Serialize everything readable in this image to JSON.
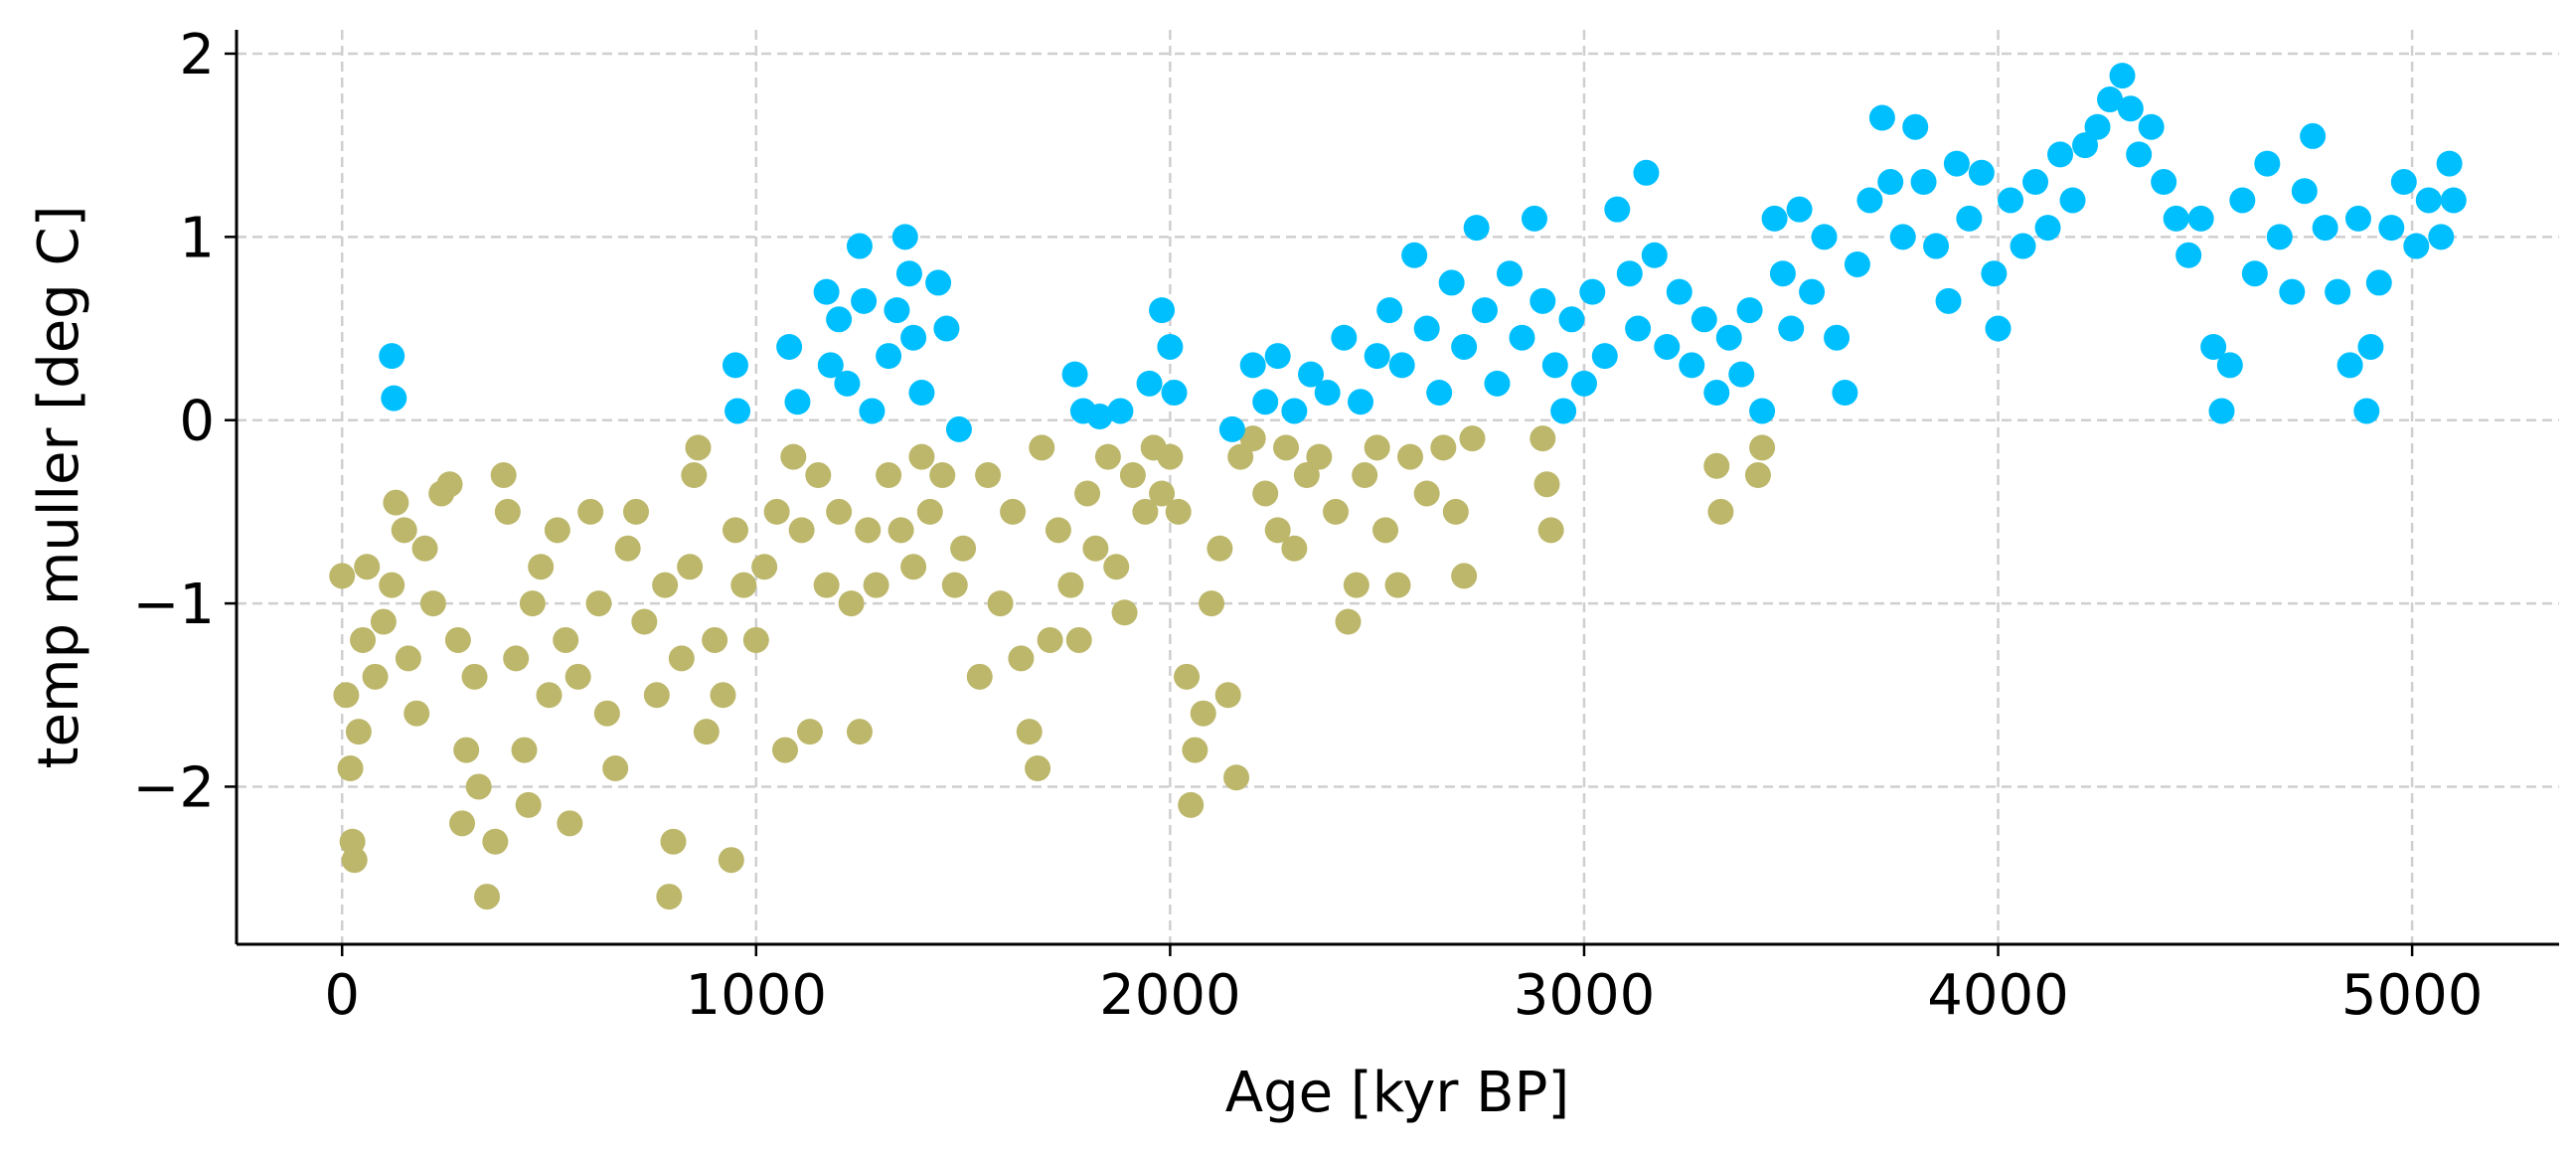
{
  "chart_data": {
    "type": "scatter",
    "xlabel": "Age [kyr BP]",
    "ylabel": "temp muller [deg C]",
    "xlim": [
      -255,
      5355
    ],
    "ylim": [
      -2.86,
      2.13
    ],
    "xticks": [
      0,
      1000,
      2000,
      3000,
      4000,
      5000
    ],
    "yticks": [
      {
        "value": -2,
        "label": "−2"
      },
      {
        "value": -1,
        "label": "−1"
      },
      0,
      1,
      2
    ],
    "grid": true,
    "series": [
      {
        "color": "#bdb76b",
        "x": [
          0,
          10,
          20,
          25,
          30,
          40,
          50,
          60,
          80,
          100,
          120,
          130,
          150,
          160,
          180,
          200,
          220,
          240,
          260,
          280,
          290,
          300,
          320,
          330,
          350,
          370,
          390,
          400,
          420,
          440,
          450,
          460,
          480,
          500,
          520,
          540,
          550,
          570,
          600,
          620,
          640,
          660,
          690,
          710,
          730,
          760,
          780,
          790,
          800,
          820,
          840,
          850,
          860,
          880,
          900,
          920,
          940,
          950,
          970,
          1000,
          1020,
          1050,
          1070,
          1090,
          1110,
          1130,
          1150,
          1170,
          1200,
          1230,
          1250,
          1270,
          1290,
          1320,
          1350,
          1380,
          1400,
          1420,
          1450,
          1480,
          1500,
          1540,
          1560,
          1590,
          1620,
          1640,
          1660,
          1680,
          1690,
          1710,
          1730,
          1760,
          1780,
          1800,
          1820,
          1850,
          1870,
          1890,
          1910,
          1940,
          1960,
          1980,
          2000,
          2020,
          2040,
          2050,
          2060,
          2080,
          2100,
          2120,
          2140,
          2160,
          2170,
          2200,
          2230,
          2260,
          2280,
          2300,
          2330,
          2360,
          2400,
          2430,
          2450,
          2470,
          2500,
          2520,
          2550,
          2580,
          2620,
          2660,
          2690,
          2710,
          2730,
          2900,
          2910,
          2920,
          3320,
          3330,
          3420,
          3430
        ],
        "values": [
          -0.85,
          -1.5,
          -1.9,
          -2.3,
          -2.4,
          -1.7,
          -1.2,
          -0.8,
          -1.4,
          -1.1,
          -0.9,
          -0.45,
          -0.6,
          -1.3,
          -1.6,
          -0.7,
          -1.0,
          -0.4,
          -0.35,
          -1.2,
          -2.2,
          -1.8,
          -1.4,
          -2.0,
          -2.6,
          -2.3,
          -0.3,
          -0.5,
          -1.3,
          -1.8,
          -2.1,
          -1.0,
          -0.8,
          -1.5,
          -0.6,
          -1.2,
          -2.2,
          -1.4,
          -0.5,
          -1.0,
          -1.6,
          -1.9,
          -0.7,
          -0.5,
          -1.1,
          -1.5,
          -0.9,
          -2.6,
          -2.3,
          -1.3,
          -0.8,
          -0.3,
          -0.15,
          -1.7,
          -1.2,
          -1.5,
          -2.4,
          -0.6,
          -0.9,
          -1.2,
          -0.8,
          -0.5,
          -1.8,
          -0.2,
          -0.6,
          -1.7,
          -0.3,
          -0.9,
          -0.5,
          -1.0,
          -1.7,
          -0.6,
          -0.9,
          -0.3,
          -0.6,
          -0.8,
          -0.2,
          -0.5,
          -0.3,
          -0.9,
          -0.7,
          -1.4,
          -0.3,
          -1.0,
          -0.5,
          -1.3,
          -1.7,
          -1.9,
          -0.15,
          -1.2,
          -0.6,
          -0.9,
          -1.2,
          -0.4,
          -0.7,
          -0.2,
          -0.8,
          -1.05,
          -0.3,
          -0.5,
          -0.15,
          -0.4,
          -0.2,
          -0.5,
          -1.4,
          -2.1,
          -1.8,
          -1.6,
          -1.0,
          -0.7,
          -1.5,
          -1.95,
          -0.2,
          -0.1,
          -0.4,
          -0.6,
          -0.15,
          -0.7,
          -0.3,
          -0.2,
          -0.5,
          -1.1,
          -0.9,
          -0.3,
          -0.15,
          -0.6,
          -0.9,
          -0.2,
          -0.4,
          -0.15,
          -0.5,
          -0.85,
          -0.1,
          -0.1,
          -0.35,
          -0.6,
          -0.25,
          -0.5,
          -0.3,
          -0.15
        ]
      },
      {
        "color": "#00bfff",
        "x": [
          120,
          125,
          950,
          955,
          1080,
          1100,
          1170,
          1180,
          1200,
          1220,
          1250,
          1260,
          1280,
          1320,
          1340,
          1360,
          1370,
          1380,
          1400,
          1440,
          1460,
          1490,
          1770,
          1790,
          1830,
          1880,
          1950,
          1980,
          2000,
          2010,
          2150,
          2200,
          2230,
          2260,
          2300,
          2340,
          2380,
          2420,
          2460,
          2500,
          2530,
          2560,
          2590,
          2620,
          2650,
          2680,
          2710,
          2740,
          2760,
          2790,
          2820,
          2850,
          2880,
          2900,
          2930,
          2950,
          2970,
          3000,
          3020,
          3050,
          3080,
          3110,
          3130,
          3150,
          3170,
          3200,
          3230,
          3260,
          3290,
          3320,
          3350,
          3380,
          3400,
          3430,
          3460,
          3480,
          3500,
          3520,
          3550,
          3580,
          3610,
          3630,
          3660,
          3690,
          3720,
          3740,
          3770,
          3800,
          3820,
          3850,
          3880,
          3900,
          3930,
          3960,
          3990,
          4000,
          4030,
          4060,
          4090,
          4120,
          4150,
          4180,
          4210,
          4240,
          4270,
          4300,
          4320,
          4340,
          4370,
          4400,
          4430,
          4460,
          4490,
          4520,
          4540,
          4560,
          4590,
          4620,
          4650,
          4680,
          4710,
          4740,
          4760,
          4790,
          4820,
          4850,
          4870,
          4890,
          4900,
          4920,
          4950,
          4980,
          5010,
          5040,
          5070,
          5090,
          5100
        ],
        "values": [
          0.35,
          0.12,
          0.3,
          0.05,
          0.4,
          0.1,
          0.7,
          0.3,
          0.55,
          0.2,
          0.95,
          0.65,
          0.05,
          0.35,
          0.6,
          1.0,
          0.8,
          0.45,
          0.15,
          0.75,
          0.5,
          -0.05,
          0.25,
          0.05,
          0.02,
          0.05,
          0.2,
          0.6,
          0.4,
          0.15,
          -0.05,
          0.3,
          0.1,
          0.35,
          0.05,
          0.25,
          0.15,
          0.45,
          0.1,
          0.35,
          0.6,
          0.3,
          0.9,
          0.5,
          0.15,
          0.75,
          0.4,
          1.05,
          0.6,
          0.2,
          0.8,
          0.45,
          1.1,
          0.65,
          0.3,
          0.05,
          0.55,
          0.2,
          0.7,
          0.35,
          1.15,
          0.8,
          0.5,
          1.35,
          0.9,
          0.4,
          0.7,
          0.3,
          0.55,
          0.15,
          0.45,
          0.25,
          0.6,
          0.05,
          1.1,
          0.8,
          0.5,
          1.15,
          0.7,
          1.0,
          0.45,
          0.15,
          0.85,
          1.2,
          1.65,
          1.3,
          1.0,
          1.6,
          1.3,
          0.95,
          0.65,
          1.4,
          1.1,
          1.35,
          0.8,
          0.5,
          1.2,
          0.95,
          1.3,
          1.05,
          1.45,
          1.2,
          1.5,
          1.6,
          1.75,
          1.88,
          1.7,
          1.45,
          1.6,
          1.3,
          1.1,
          0.9,
          1.1,
          0.4,
          0.05,
          0.3,
          1.2,
          0.8,
          1.4,
          1.0,
          0.7,
          1.25,
          1.55,
          1.05,
          0.7,
          0.3,
          1.1,
          0.05,
          0.4,
          0.75,
          1.05,
          1.3,
          0.95,
          1.2,
          1.0,
          1.4,
          1.2
        ]
      }
    ]
  }
}
